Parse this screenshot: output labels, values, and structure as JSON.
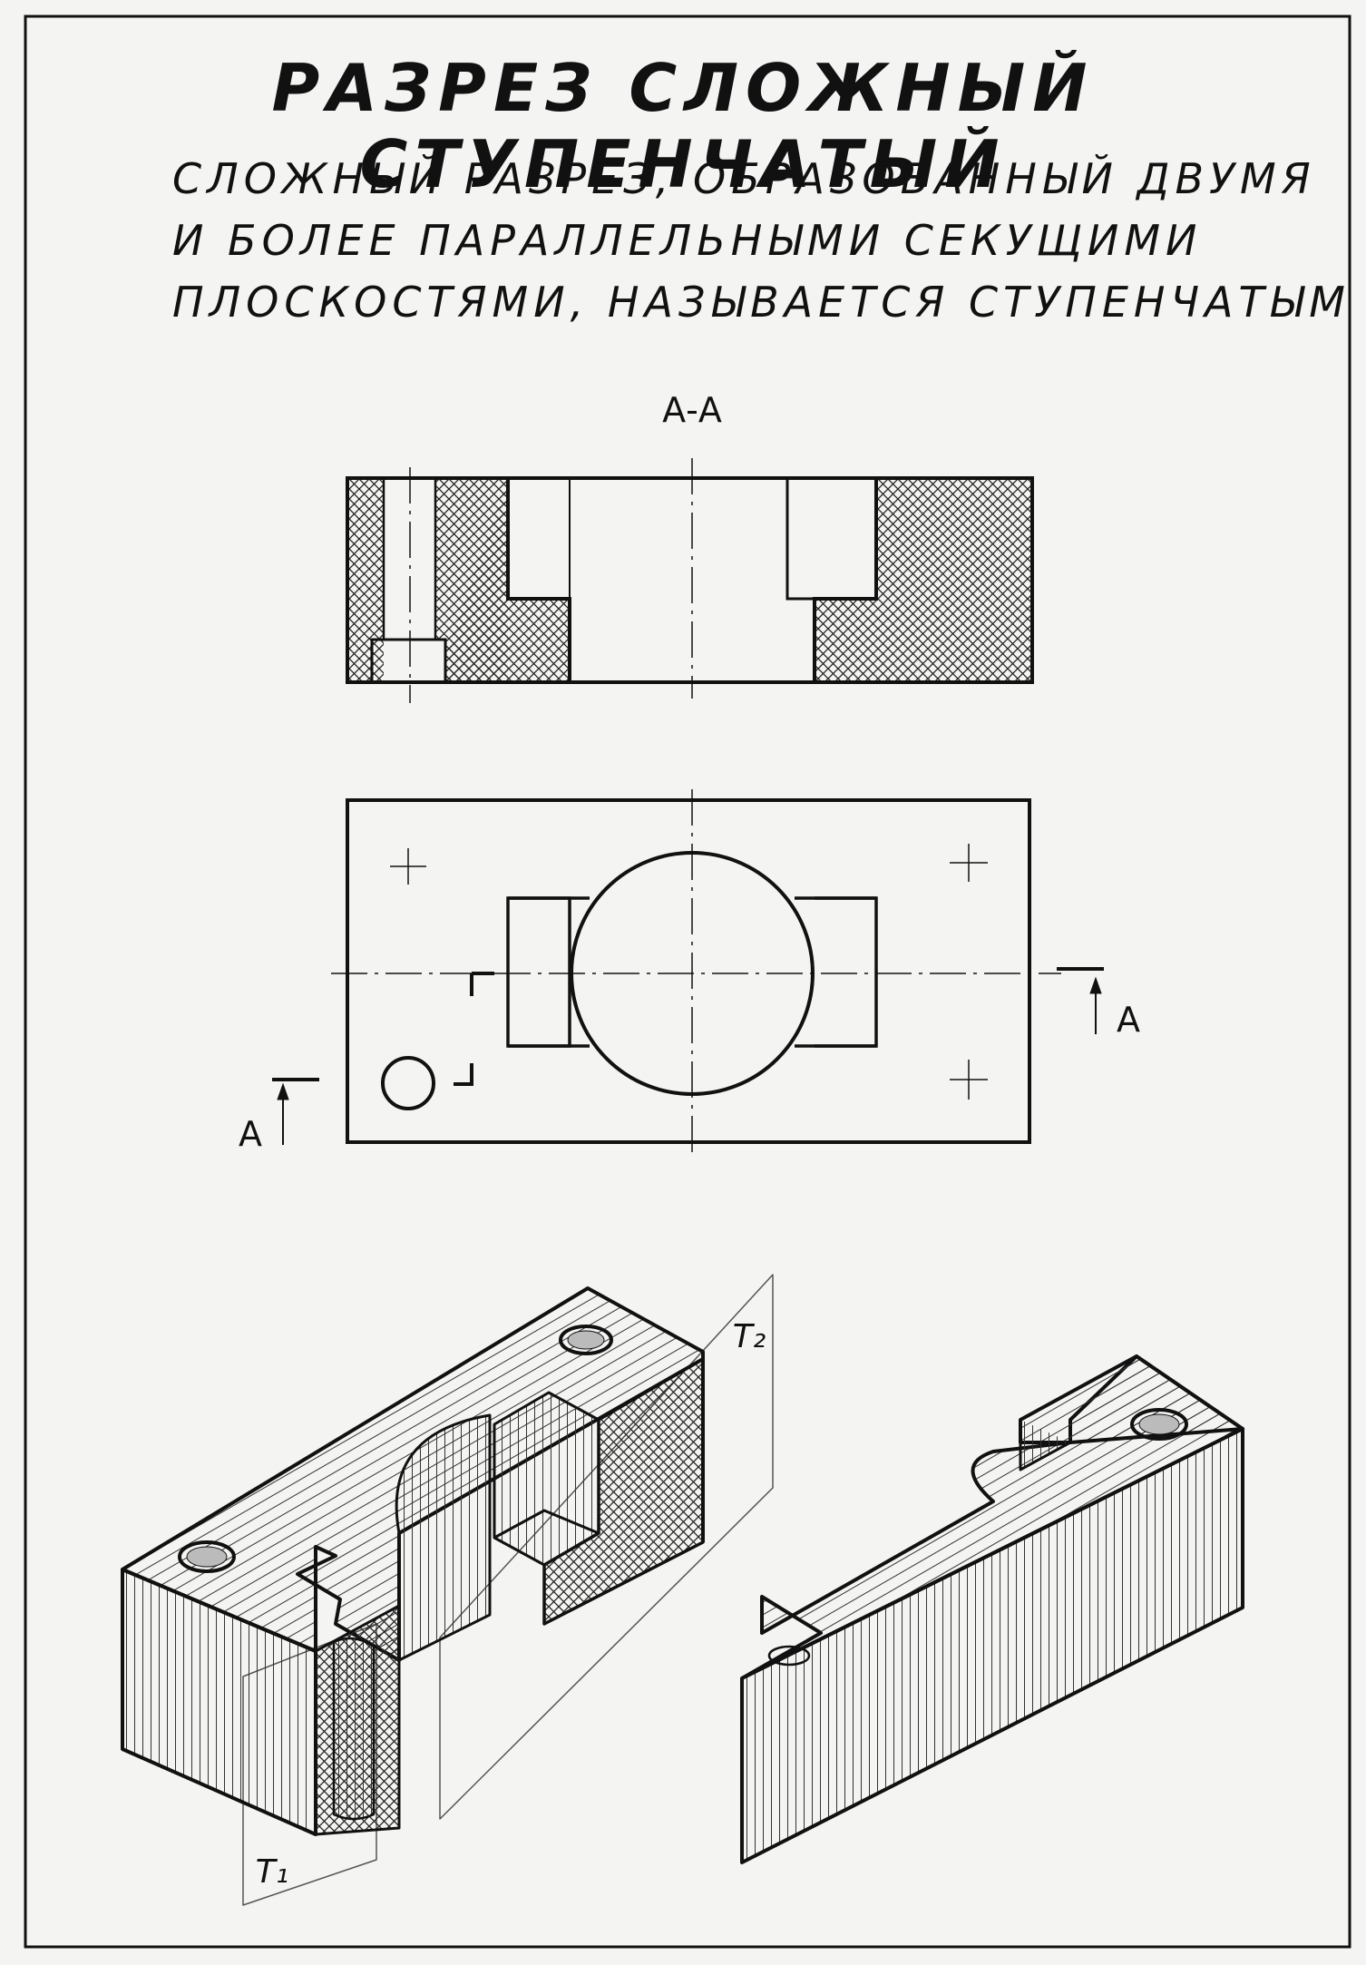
{
  "poster": {
    "title": "РАЗРЕЗ СЛОЖНЫЙ СТУПЕНЧАТЫЙ",
    "definition": [
      "СЛОЖНЫЙ РАЗРЕЗ, ОБРАЗОВАННЫЙ ДВУМЯ",
      "И БОЛЕЕ ПАРАЛЛЕЛЬНЫМИ СЕКУЩИМИ",
      "ПЛОСКОСТЯМИ, НАЗЫВАЕТСЯ СТУПЕНЧАТЫМ"
    ]
  },
  "section_view": {
    "label": "А-А"
  },
  "plan_view": {
    "cut_mark_left": "А",
    "cut_mark_right": "А"
  },
  "iso_view": {
    "plane_1": "T₁",
    "plane_2": "T₂"
  },
  "colors": {
    "ink": "#111111",
    "paper": "#f4f4f2"
  }
}
